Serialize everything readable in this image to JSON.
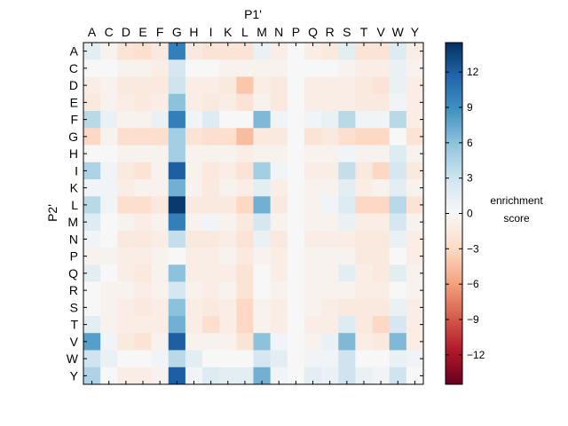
{
  "chart_data": {
    "type": "heatmap",
    "title": "",
    "xlabel": "P1'",
    "ylabel": "P2'",
    "x_categories": [
      "A",
      "C",
      "D",
      "E",
      "F",
      "G",
      "H",
      "I",
      "K",
      "L",
      "M",
      "N",
      "P",
      "Q",
      "R",
      "S",
      "T",
      "V",
      "W",
      "Y"
    ],
    "y_categories": [
      "A",
      "C",
      "D",
      "E",
      "F",
      "G",
      "H",
      "I",
      "K",
      "L",
      "M",
      "N",
      "P",
      "Q",
      "R",
      "S",
      "T",
      "V",
      "W",
      "Y"
    ],
    "values": [
      [
        1.5,
        -0.5,
        -2,
        -2.5,
        -1.5,
        10,
        -1.5,
        -2,
        -2,
        -2,
        1,
        -1,
        0,
        -1,
        -1.5,
        1.5,
        -2,
        -2,
        2,
        -1
      ],
      [
        0,
        0,
        -0.5,
        -0.5,
        -1,
        2.5,
        0,
        0,
        -0.5,
        -0.5,
        -0.5,
        -0.5,
        0,
        0,
        0,
        -0.5,
        -1,
        -1,
        1,
        -0.5
      ],
      [
        -1,
        -0.5,
        -1.5,
        -1.5,
        -1.5,
        3,
        -1,
        -1,
        -1.5,
        -4,
        -1,
        -1.5,
        0,
        -1,
        -1,
        -1,
        -1.5,
        -2,
        1,
        -1
      ],
      [
        -1.5,
        -0.5,
        -1,
        -1.5,
        -1,
        6,
        -1,
        -1.5,
        -1,
        -2,
        -0.5,
        -1.5,
        0,
        -1,
        -1,
        -1,
        -1.5,
        -1.5,
        0.5,
        -1
      ],
      [
        4,
        1,
        -0.5,
        -0.5,
        1,
        10,
        0.5,
        2,
        0,
        0,
        6.5,
        0.5,
        0,
        0.5,
        1,
        4,
        0.5,
        0.5,
        4,
        -1
      ],
      [
        -3,
        -0.5,
        -2.5,
        -2.5,
        -2.5,
        5,
        -2,
        -2.5,
        -2.5,
        -4.5,
        -1.5,
        -1.5,
        0,
        -2,
        -1.5,
        -2.5,
        -3,
        -3,
        0,
        -2
      ],
      [
        0,
        0,
        -0.5,
        -0.5,
        -0.5,
        5,
        -0.5,
        -0.5,
        -0.5,
        -1,
        -0.5,
        -0.5,
        0,
        -0.5,
        -0.5,
        0.5,
        -0.5,
        -0.5,
        2,
        -0.5
      ],
      [
        4.5,
        0.5,
        -1.5,
        -2,
        -0.5,
        12,
        -0.5,
        -1.5,
        -1,
        -2,
        5,
        0.5,
        0,
        -1,
        -1,
        3.5,
        -1.5,
        -3,
        2.5,
        -1.5
      ],
      [
        0.5,
        0.5,
        -1,
        -0.5,
        -0.5,
        7,
        -0.5,
        -1.5,
        -0.5,
        -1,
        1.5,
        -1,
        0,
        -0.5,
        -0.5,
        1.5,
        -1,
        -0.5,
        1.5,
        -0.5
      ],
      [
        4,
        0.5,
        -2.5,
        -2.5,
        -1.5,
        14,
        -1.5,
        -1.5,
        -1.5,
        -3,
        7,
        -1.5,
        0,
        -0.5,
        0.5,
        2,
        -3,
        -3,
        4,
        -2
      ],
      [
        2,
        0,
        -0.5,
        -1,
        -0.5,
        10,
        -0.5,
        0.5,
        -0.5,
        -1.5,
        2.5,
        -0.5,
        0,
        -0.5,
        -0.5,
        1,
        -1,
        -1,
        2.5,
        -0.5
      ],
      [
        0.5,
        0,
        -1.5,
        -1.5,
        -1,
        3.5,
        -1.5,
        -1.5,
        -1,
        -2,
        1,
        -1.5,
        0,
        -1,
        -1,
        -1,
        -1.5,
        -1.5,
        1,
        -1
      ],
      [
        -0.5,
        -0.5,
        -1,
        -1,
        -0.5,
        0,
        -1,
        -1,
        -0.5,
        -1.5,
        -0.5,
        -1,
        0,
        -0.5,
        -0.5,
        -0.5,
        -1.5,
        -1.5,
        0,
        -1
      ],
      [
        1.5,
        0,
        -1,
        -1.5,
        -0.5,
        6,
        -1,
        -1,
        -1,
        -2,
        0,
        -1,
        0,
        -0.5,
        -0.5,
        1.5,
        -1,
        -1.5,
        1.5,
        -0.5
      ],
      [
        0,
        -0.5,
        -0.5,
        -1,
        -0.5,
        2.5,
        -0.5,
        -1,
        -0.5,
        -2,
        0,
        -0.5,
        0,
        -0.5,
        -0.5,
        -0.5,
        -1,
        -1,
        0,
        -0.5
      ],
      [
        0,
        -0.5,
        -1,
        -1.5,
        -1,
        6,
        -1,
        -1.5,
        -1,
        -3,
        -0.5,
        -1,
        0,
        -0.5,
        -1,
        -1.5,
        -1.5,
        -1.5,
        1,
        -1
      ],
      [
        1.5,
        -0.5,
        -1,
        -1,
        -1,
        7,
        -1,
        -2.5,
        -1,
        -3,
        -0.5,
        -1,
        0,
        -1,
        -1,
        2,
        -1.5,
        -3,
        2.5,
        -1
      ],
      [
        8,
        0.5,
        -1.5,
        -2,
        -0.5,
        12,
        -0.5,
        -0.5,
        -0.5,
        -2,
        6,
        0.5,
        0,
        -0.5,
        1,
        6.5,
        -1,
        -1.5,
        6.5,
        -1
      ],
      [
        3,
        1,
        0,
        0,
        0.5,
        4,
        1.5,
        0,
        0,
        0,
        2.5,
        1.5,
        0,
        0.5,
        0.5,
        3,
        0,
        0,
        1,
        0.5
      ],
      [
        4.5,
        0,
        -1,
        -1,
        -0.5,
        12,
        0.5,
        2,
        1.5,
        1.5,
        7,
        0.5,
        0,
        1.5,
        1,
        3,
        1,
        0.5,
        3,
        0
      ]
    ],
    "vmin": -14.5,
    "vmax": 14.5,
    "colorbar": {
      "label_line1": "enrichment",
      "label_line2": "score",
      "ticks": [
        12,
        9,
        6,
        3,
        0,
        -3,
        -6,
        -9,
        -12
      ],
      "tick_labels": [
        "12",
        "9",
        "6",
        "3",
        "0",
        "−3",
        "−6",
        "−9",
        "−12"
      ]
    },
    "colormap": "RdBu",
    "colormap_stops": [
      "#67001f",
      "#b2182b",
      "#d6604d",
      "#f4a582",
      "#fddbc7",
      "#f7f7f7",
      "#d1e5f0",
      "#92c5de",
      "#4393c3",
      "#2166ac",
      "#053061"
    ]
  }
}
